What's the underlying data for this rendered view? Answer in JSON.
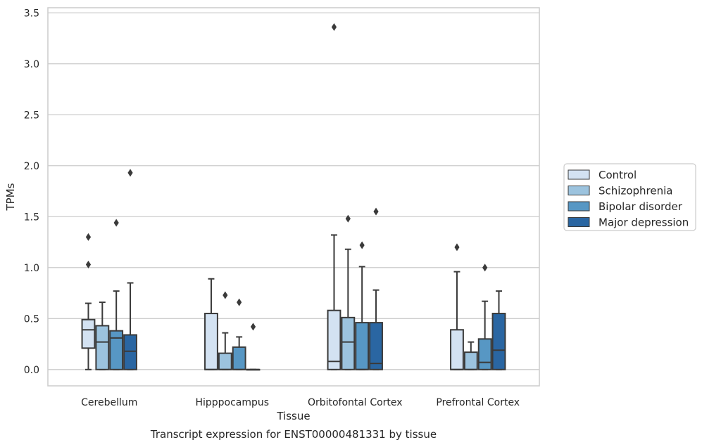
{
  "chart_data": {
    "type": "box",
    "xlabel": "Tissue",
    "ylabel": "TPMs",
    "caption": "Transcript expression for ENST00000481331 by tissue",
    "categories": [
      "Cerebellum",
      "Hipppocampus",
      "Orbitofontal Cortex",
      "Prefrontal Cortex"
    ],
    "ylim": [
      -0.16,
      3.55
    ],
    "yticks": [
      "0.0",
      "0.5",
      "1.0",
      "1.5",
      "2.0",
      "2.5",
      "3.0",
      "3.5"
    ],
    "ytick_values": [
      0,
      0.5,
      1.0,
      1.5,
      2.0,
      2.5,
      3.0,
      3.5
    ],
    "grid": true,
    "legend_position": "right",
    "series": [
      {
        "name": "Control",
        "color": "#d3e2f2",
        "boxes": [
          {
            "q1": 0.21,
            "median": 0.39,
            "q3": 0.49,
            "whislo": 0.0,
            "whishi": 0.65,
            "fliers": [
              1.03,
              1.3
            ]
          },
          {
            "q1": 0.0,
            "median": 0.0,
            "q3": 0.55,
            "whislo": 0.0,
            "whishi": 0.89,
            "fliers": []
          },
          {
            "q1": 0.0,
            "median": 0.08,
            "q3": 0.58,
            "whislo": 0.0,
            "whishi": 1.32,
            "fliers": [
              3.36
            ]
          },
          {
            "q1": 0.0,
            "median": 0.0,
            "q3": 0.39,
            "whislo": 0.0,
            "whishi": 0.96,
            "fliers": [
              1.2
            ]
          }
        ]
      },
      {
        "name": "Schizophrenia",
        "color": "#9cc3de",
        "boxes": [
          {
            "q1": 0.0,
            "median": 0.27,
            "q3": 0.43,
            "whislo": 0.0,
            "whishi": 0.66,
            "fliers": []
          },
          {
            "q1": 0.0,
            "median": 0.0,
            "q3": 0.16,
            "whislo": 0.0,
            "whishi": 0.36,
            "fliers": [
              0.73
            ]
          },
          {
            "q1": 0.0,
            "median": 0.27,
            "q3": 0.51,
            "whislo": 0.0,
            "whishi": 1.18,
            "fliers": [
              1.48
            ]
          },
          {
            "q1": 0.0,
            "median": 0.0,
            "q3": 0.17,
            "whislo": 0.0,
            "whishi": 0.27,
            "fliers": []
          }
        ]
      },
      {
        "name": "Bipolar disorder",
        "color": "#5797c4",
        "boxes": [
          {
            "q1": 0.0,
            "median": 0.31,
            "q3": 0.38,
            "whislo": 0.0,
            "whishi": 0.77,
            "fliers": [
              1.44
            ]
          },
          {
            "q1": 0.0,
            "median": 0.0,
            "q3": 0.22,
            "whislo": 0.0,
            "whishi": 0.32,
            "fliers": [
              0.66
            ]
          },
          {
            "q1": 0.0,
            "median": 0.0,
            "q3": 0.46,
            "whislo": 0.0,
            "whishi": 1.01,
            "fliers": [
              1.22
            ]
          },
          {
            "q1": 0.0,
            "median": 0.07,
            "q3": 0.3,
            "whislo": 0.0,
            "whishi": 0.67,
            "fliers": [
              1.0
            ]
          }
        ]
      },
      {
        "name": "Major depression",
        "color": "#2a66a2",
        "boxes": [
          {
            "q1": 0.0,
            "median": 0.18,
            "q3": 0.34,
            "whislo": 0.0,
            "whishi": 0.85,
            "fliers": [
              1.93
            ]
          },
          {
            "q1": 0.0,
            "median": 0.0,
            "q3": 0.0,
            "whislo": 0.0,
            "whishi": 0.0,
            "fliers": [
              0.42
            ]
          },
          {
            "q1": 0.0,
            "median": 0.06,
            "q3": 0.46,
            "whislo": 0.0,
            "whishi": 0.78,
            "fliers": [
              1.55
            ]
          },
          {
            "q1": 0.0,
            "median": 0.19,
            "q3": 0.55,
            "whislo": 0.0,
            "whishi": 0.77,
            "fliers": []
          }
        ]
      }
    ]
  }
}
